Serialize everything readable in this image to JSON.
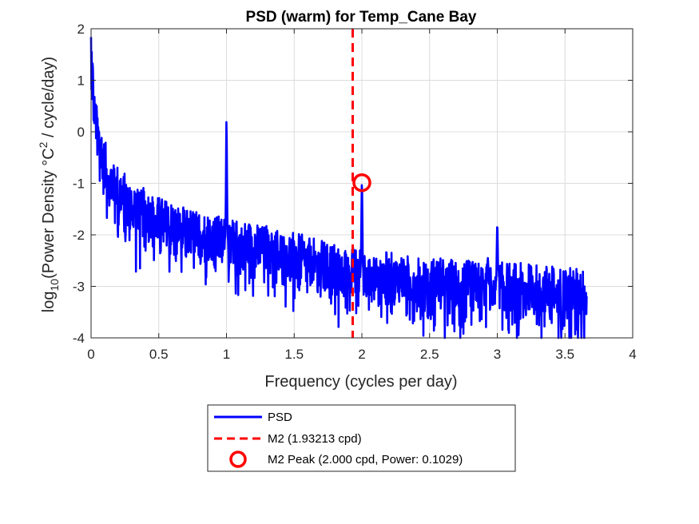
{
  "chart_data": {
    "type": "line",
    "title": "PSD (warm) for Temp_Cane Bay",
    "xlabel": "Frequency (cycles per day)",
    "ylabel_prefix": "log",
    "ylabel_sub": "10",
    "ylabel_mid": "(Power Density °C",
    "ylabel_sup": "2",
    "ylabel_suffix": " / cycle/day)",
    "xlim": [
      0,
      4
    ],
    "ylim": [
      -4,
      2
    ],
    "xticks": [
      0,
      0.5,
      1,
      1.5,
      2,
      2.5,
      3,
      3.5,
      4
    ],
    "xtick_labels": [
      "0",
      "0.5",
      "1",
      "1.5",
      "2",
      "2.5",
      "3",
      "3.5",
      "4"
    ],
    "yticks": [
      -4,
      -3,
      -2,
      -1,
      0,
      1,
      2
    ],
    "ytick_labels": [
      "-4",
      "-3",
      "-2",
      "-1",
      "0",
      "1",
      "2"
    ],
    "grid": true,
    "legend_position": "bottom-center, outside",
    "series": [
      {
        "name": "PSD",
        "color": "#0000ff",
        "style": "solid",
        "x_max": 3.66,
        "trend_points": [
          [
            0.0,
            1.7
          ],
          [
            0.01,
            1.2
          ],
          [
            0.02,
            0.6
          ],
          [
            0.04,
            0.1
          ],
          [
            0.06,
            -0.2
          ],
          [
            0.1,
            -0.6
          ],
          [
            0.15,
            -0.9
          ],
          [
            0.2,
            -1.1
          ],
          [
            0.3,
            -1.4
          ],
          [
            0.4,
            -1.55
          ],
          [
            0.5,
            -1.7
          ],
          [
            0.7,
            -1.9
          ],
          [
            0.9,
            -2.05
          ],
          [
            1.1,
            -2.15
          ],
          [
            1.3,
            -2.25
          ],
          [
            1.5,
            -2.4
          ],
          [
            1.7,
            -2.55
          ],
          [
            1.9,
            -2.65
          ],
          [
            2.1,
            -2.75
          ],
          [
            2.4,
            -2.85
          ],
          [
            2.8,
            -2.95
          ],
          [
            3.2,
            -3.0
          ],
          [
            3.66,
            -3.1
          ]
        ],
        "peaks": [
          {
            "x": 1.0,
            "y": 0.2
          },
          {
            "x": 2.0,
            "y": -1.0
          },
          {
            "x": 3.0,
            "y": -1.8
          },
          {
            "x": 2.93,
            "y": -2.45
          }
        ]
      },
      {
        "name": "M2 (1.93213 cpd)",
        "color": "#ff0000",
        "style": "dashed",
        "x": 1.93213
      },
      {
        "name": "M2 Peak (2.000 cpd, Power: 0.1029)",
        "color": "#ff0000",
        "style": "circle-marker",
        "x": 2.0,
        "y": -0.9876
      }
    ]
  }
}
